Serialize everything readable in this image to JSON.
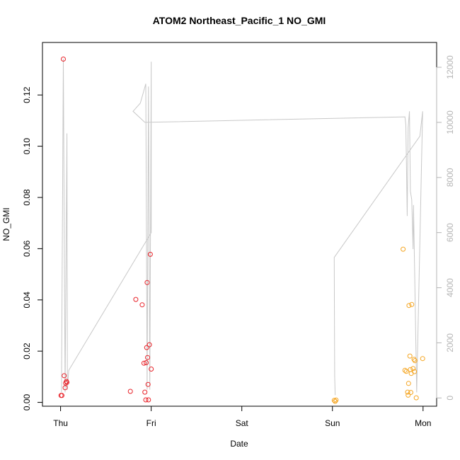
{
  "chart_data": {
    "type": "scatter",
    "title": "ATOM2 Northeast_Pacific_1 NO_GMI",
    "xlabel": "Date",
    "ylabel": "NO_GMI",
    "x_unit": "day",
    "x_ticks": [
      {
        "label": "Thu",
        "value": 0
      },
      {
        "label": "Fri",
        "value": 1
      },
      {
        "label": "Sat",
        "value": 2
      },
      {
        "label": "Sun",
        "value": 3
      },
      {
        "label": "Mon",
        "value": 4
      }
    ],
    "xlim": [
      -0.2,
      4.15
    ],
    "ylim": [
      -0.0015,
      0.1405
    ],
    "y_ticks": [
      "0.00",
      "0.02",
      "0.04",
      "0.06",
      "0.08",
      "0.10",
      "0.12"
    ],
    "y2lim": [
      -300,
      12900
    ],
    "y2_ticks": [
      "0",
      "2000",
      "4000",
      "6000",
      "8000",
      "10000",
      "12000"
    ],
    "colors": {
      "no_gmi_first": "#e8232a",
      "no_gmi_second": "#f5a623",
      "altitude_line": "#c8c8c8"
    },
    "series": [
      {
        "color": "#e8232a",
        "points": [
          [
            0.005,
            0.0027
          ],
          [
            0.015,
            0.0027
          ],
          [
            0.03,
            0.134
          ],
          [
            0.04,
            0.0104
          ],
          [
            0.05,
            0.0057
          ],
          [
            0.055,
            0.0075
          ],
          [
            0.065,
            0.0082
          ],
          [
            0.07,
            0.0078
          ],
          [
            0.77,
            0.0043
          ],
          [
            0.83,
            0.0402
          ],
          [
            0.9,
            0.0381
          ],
          [
            0.92,
            0.0153
          ],
          [
            0.93,
            0.004
          ],
          [
            0.94,
            0.001
          ],
          [
            0.945,
            0.0155
          ],
          [
            0.95,
            0.0214
          ],
          [
            0.955,
            0.0468
          ],
          [
            0.96,
            0.0175
          ],
          [
            0.965,
            0.007
          ],
          [
            0.97,
            0.001
          ],
          [
            0.98,
            0.0225
          ],
          [
            0.99,
            0.0578
          ],
          [
            1.0,
            0.013
          ]
        ]
      },
      {
        "color": "#f5a623",
        "points": [
          [
            3.02,
            0.0008
          ],
          [
            3.03,
            0.0004
          ],
          [
            3.04,
            0.0009
          ],
          [
            3.78,
            0.0598
          ],
          [
            3.8,
            0.0125
          ],
          [
            3.815,
            0.0121
          ],
          [
            3.83,
            0.004
          ],
          [
            3.835,
            0.0028
          ],
          [
            3.84,
            0.0074
          ],
          [
            3.845,
            0.0378
          ],
          [
            3.855,
            0.0181
          ],
          [
            3.86,
            0.0128
          ],
          [
            3.865,
            0.0039
          ],
          [
            3.87,
            0.0113
          ],
          [
            3.875,
            0.0382
          ],
          [
            3.89,
            0.0132
          ],
          [
            3.9,
            0.0168
          ],
          [
            3.905,
            0.012
          ],
          [
            3.91,
            0.0163
          ],
          [
            3.925,
            0.0018
          ],
          [
            3.995,
            0.0171
          ]
        ]
      }
    ],
    "altitude_line": [
      [
        0.01,
        200
      ],
      [
        0.03,
        12300
      ],
      [
        0.05,
        200
      ],
      [
        0.07,
        9600
      ],
      [
        0.075,
        300
      ],
      [
        0.09,
        1000
      ],
      [
        1.0,
        6000
      ],
      [
        1.0,
        12200
      ],
      [
        0.985,
        300
      ],
      [
        0.97,
        11300
      ],
      [
        0.955,
        300
      ],
      [
        0.94,
        11400
      ],
      [
        0.88,
        10700
      ],
      [
        0.8,
        10400
      ],
      [
        0.93,
        10000
      ],
      [
        3.8,
        10200
      ],
      [
        3.81,
        9900
      ],
      [
        3.825,
        6600
      ],
      [
        3.835,
        9800
      ],
      [
        3.85,
        10400
      ],
      [
        3.86,
        7500
      ],
      [
        3.875,
        7200
      ],
      [
        3.89,
        5400
      ],
      [
        3.895,
        7000
      ],
      [
        3.93,
        200
      ],
      [
        3.995,
        10400
      ],
      [
        3.965,
        9500
      ],
      [
        3.02,
        5100
      ],
      [
        3.025,
        800
      ],
      [
        3.03,
        100
      ]
    ]
  }
}
